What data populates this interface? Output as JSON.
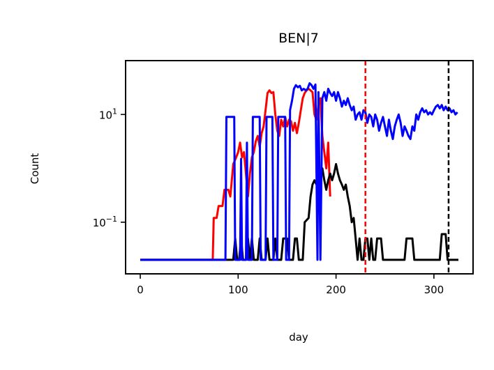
{
  "chart_data": {
    "type": "line",
    "title": "BEN|7",
    "xlabel": "day",
    "ylabel": "Count",
    "xlim": [
      -15,
      340
    ],
    "ylim": [
      0.011,
      100
    ],
    "yscale": "log",
    "grid": false,
    "legend": "none",
    "xticks": [
      0,
      100,
      200,
      300
    ],
    "xtick_labels": [
      "0",
      "100",
      "200",
      "300"
    ],
    "yticks": [
      {
        "value": 10,
        "base": "10",
        "exp": "1"
      },
      {
        "value": 0.1,
        "base": "10",
        "exp": "−1"
      }
    ],
    "vlines": [
      {
        "x": 230,
        "color": "#ff0000",
        "style": "dashed"
      },
      {
        "x": 315,
        "color": "#000000",
        "style": "dashed"
      }
    ],
    "series": [
      {
        "color": "#ff0000",
        "points": [
          [
            0,
            0.02
          ],
          [
            74,
            0.02
          ],
          [
            75,
            0.12
          ],
          [
            78,
            0.12
          ],
          [
            80,
            0.2
          ],
          [
            84,
            0.2
          ],
          [
            86,
            0.4
          ],
          [
            90,
            0.4
          ],
          [
            92,
            0.3
          ],
          [
            95,
            1.2
          ],
          [
            98,
            1.6
          ],
          [
            100,
            2.0
          ],
          [
            102,
            3.0
          ],
          [
            104,
            1.6
          ],
          [
            106,
            2.0
          ],
          [
            108,
            0.8
          ],
          [
            110,
            0.3
          ],
          [
            112,
            0.8
          ],
          [
            114,
            1.6
          ],
          [
            116,
            2.0
          ],
          [
            118,
            3.2
          ],
          [
            120,
            4.0
          ],
          [
            122,
            2.5
          ],
          [
            124,
            4.5
          ],
          [
            126,
            6.0
          ],
          [
            128,
            12
          ],
          [
            130,
            25
          ],
          [
            132,
            28
          ],
          [
            134,
            25
          ],
          [
            136,
            26
          ],
          [
            138,
            10
          ],
          [
            140,
            5.0
          ],
          [
            142,
            4.0
          ],
          [
            144,
            8.0
          ],
          [
            146,
            6.0
          ],
          [
            148,
            9.0
          ],
          [
            150,
            6.0
          ],
          [
            152,
            8.0
          ],
          [
            154,
            7.5
          ],
          [
            156,
            5.0
          ],
          [
            158,
            7.0
          ],
          [
            160,
            4.5
          ],
          [
            162,
            7.0
          ],
          [
            164,
            12
          ],
          [
            166,
            20
          ],
          [
            168,
            25
          ],
          [
            170,
            28
          ],
          [
            172,
            30
          ],
          [
            174,
            28
          ],
          [
            176,
            26
          ],
          [
            178,
            10
          ],
          [
            180,
            8.0
          ],
          [
            182,
            15
          ],
          [
            184,
            20
          ],
          [
            186,
            4.0
          ],
          [
            188,
            2.0
          ],
          [
            190,
            1.0
          ],
          [
            192,
            3.0
          ],
          [
            194,
            0.3
          ]
        ]
      },
      {
        "color": "#000000",
        "points": [
          [
            0,
            0.02
          ],
          [
            95,
            0.02
          ],
          [
            97,
            0.05
          ],
          [
            99,
            0.02
          ],
          [
            101,
            0.02
          ],
          [
            103,
            0.05
          ],
          [
            105,
            0.02
          ],
          [
            108,
            0.02
          ],
          [
            110,
            0.05
          ],
          [
            112,
            0.02
          ],
          [
            114,
            0.05
          ],
          [
            116,
            0.02
          ],
          [
            120,
            0.02
          ],
          [
            122,
            0.05
          ],
          [
            124,
            0.02
          ],
          [
            128,
            0.02
          ],
          [
            130,
            0.05
          ],
          [
            132,
            0.02
          ],
          [
            136,
            0.02
          ],
          [
            138,
            0.05
          ],
          [
            140,
            0.02
          ],
          [
            144,
            0.02
          ],
          [
            146,
            0.05
          ],
          [
            150,
            0.05
          ],
          [
            152,
            0.02
          ],
          [
            156,
            0.02
          ],
          [
            158,
            0.05
          ],
          [
            160,
            0.05
          ],
          [
            162,
            0.02
          ],
          [
            166,
            0.02
          ],
          [
            168,
            0.1
          ],
          [
            172,
            0.12
          ],
          [
            174,
            0.3
          ],
          [
            176,
            0.5
          ],
          [
            178,
            0.6
          ],
          [
            180,
            0.5
          ],
          [
            182,
            0.6
          ],
          [
            184,
            0.8
          ],
          [
            186,
            1.0
          ],
          [
            188,
            0.6
          ],
          [
            190,
            0.4
          ],
          [
            192,
            0.6
          ],
          [
            194,
            0.8
          ],
          [
            196,
            0.6
          ],
          [
            198,
            0.8
          ],
          [
            200,
            1.2
          ],
          [
            202,
            0.8
          ],
          [
            204,
            0.6
          ],
          [
            206,
            0.5
          ],
          [
            208,
            0.4
          ],
          [
            210,
            0.5
          ],
          [
            212,
            0.3
          ],
          [
            214,
            0.2
          ],
          [
            216,
            0.1
          ],
          [
            218,
            0.12
          ],
          [
            220,
            0.05
          ],
          [
            222,
            0.02
          ],
          [
            224,
            0.05
          ],
          [
            226,
            0.02
          ],
          [
            228,
            0.02
          ],
          [
            230,
            0.05
          ],
          [
            232,
            0.05
          ],
          [
            234,
            0.02
          ],
          [
            236,
            0.05
          ],
          [
            238,
            0.02
          ],
          [
            240,
            0.02
          ],
          [
            242,
            0.05
          ],
          [
            246,
            0.05
          ],
          [
            248,
            0.02
          ],
          [
            270,
            0.02
          ],
          [
            272,
            0.05
          ],
          [
            278,
            0.05
          ],
          [
            280,
            0.02
          ],
          [
            306,
            0.02
          ],
          [
            308,
            0.06
          ],
          [
            312,
            0.06
          ],
          [
            314,
            0.02
          ],
          [
            325,
            0.02
          ]
        ]
      },
      {
        "color": "#0000ff",
        "points": [
          [
            0,
            0.02
          ],
          [
            87,
            0.02
          ],
          [
            88,
            9
          ],
          [
            96,
            9
          ],
          [
            97,
            0.02
          ],
          [
            102,
            0.02
          ],
          [
            103,
            1.5
          ],
          [
            104,
            0.02
          ],
          [
            108,
            0.02
          ],
          [
            109,
            3
          ],
          [
            110,
            0.02
          ],
          [
            114,
            0.02
          ],
          [
            115,
            9
          ],
          [
            122,
            9
          ],
          [
            123,
            0.02
          ],
          [
            128,
            0.02
          ],
          [
            129,
            9
          ],
          [
            135,
            9
          ],
          [
            136,
            0.02
          ],
          [
            140,
            0.02
          ],
          [
            141,
            9
          ],
          [
            148,
            9
          ],
          [
            149,
            0.02
          ],
          [
            152,
            0.02
          ],
          [
            153,
            12
          ],
          [
            155,
            18
          ],
          [
            157,
            30
          ],
          [
            159,
            35
          ],
          [
            161,
            32
          ],
          [
            163,
            34
          ],
          [
            165,
            28
          ],
          [
            167,
            30
          ],
          [
            169,
            28
          ],
          [
            171,
            30
          ],
          [
            173,
            38
          ],
          [
            175,
            35
          ],
          [
            177,
            30
          ],
          [
            179,
            36
          ],
          [
            181,
            0.02
          ],
          [
            182,
            26
          ],
          [
            184,
            0.02
          ],
          [
            186,
            20
          ],
          [
            188,
            26
          ],
          [
            190,
            18
          ],
          [
            192,
            30
          ],
          [
            194,
            25
          ],
          [
            196,
            22
          ],
          [
            198,
            26
          ],
          [
            200,
            18
          ],
          [
            202,
            26
          ],
          [
            204,
            20
          ],
          [
            206,
            14
          ],
          [
            208,
            18
          ],
          [
            210,
            15
          ],
          [
            212,
            20
          ],
          [
            214,
            15
          ],
          [
            216,
            12
          ],
          [
            218,
            14
          ],
          [
            220,
            8
          ],
          [
            222,
            10
          ],
          [
            224,
            11
          ],
          [
            226,
            8
          ],
          [
            228,
            12
          ],
          [
            230,
            11
          ],
          [
            232,
            7
          ],
          [
            234,
            10
          ],
          [
            236,
            9
          ],
          [
            238,
            6
          ],
          [
            240,
            10
          ],
          [
            242,
            8
          ],
          [
            244,
            5
          ],
          [
            246,
            7
          ],
          [
            248,
            9
          ],
          [
            250,
            6
          ],
          [
            252,
            4
          ],
          [
            254,
            8
          ],
          [
            256,
            5
          ],
          [
            258,
            3.5
          ],
          [
            260,
            6
          ],
          [
            262,
            8
          ],
          [
            264,
            10
          ],
          [
            266,
            7
          ],
          [
            268,
            4
          ],
          [
            270,
            6
          ],
          [
            272,
            5
          ],
          [
            274,
            4
          ],
          [
            276,
            3.5
          ],
          [
            278,
            6
          ],
          [
            280,
            5
          ],
          [
            282,
            10
          ],
          [
            284,
            8
          ],
          [
            286,
            11
          ],
          [
            288,
            13
          ],
          [
            290,
            11
          ],
          [
            292,
            12
          ],
          [
            294,
            10
          ],
          [
            296,
            11
          ],
          [
            298,
            10
          ],
          [
            300,
            12
          ],
          [
            302,
            14
          ],
          [
            304,
            15
          ],
          [
            306,
            13
          ],
          [
            308,
            15
          ],
          [
            310,
            12
          ],
          [
            312,
            14
          ],
          [
            314,
            12
          ],
          [
            316,
            13
          ],
          [
            318,
            11
          ],
          [
            320,
            12
          ],
          [
            322,
            10
          ],
          [
            324,
            11
          ]
        ]
      }
    ]
  }
}
